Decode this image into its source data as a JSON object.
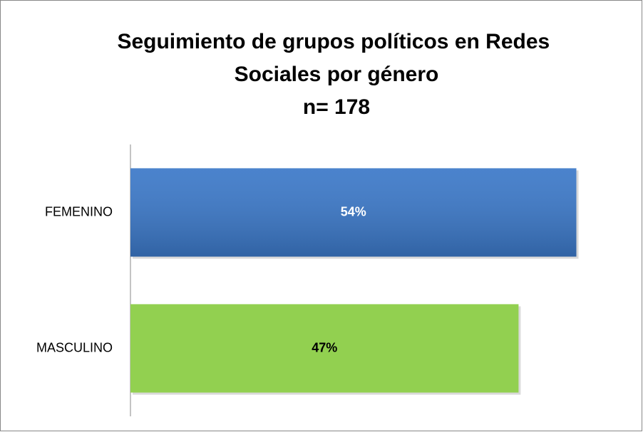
{
  "chart_data": {
    "type": "hbar",
    "title": "Seguimiento de grupos políticos en Redes Sociales por género",
    "subtitle": "n= 178",
    "categories": [
      "FEMENINO",
      "MASCULINO"
    ],
    "values": [
      54,
      47
    ],
    "value_labels": [
      "54%",
      "47%"
    ],
    "colors": [
      "#3b78c8",
      "#92d050"
    ],
    "xlim": [
      0,
      60
    ]
  }
}
